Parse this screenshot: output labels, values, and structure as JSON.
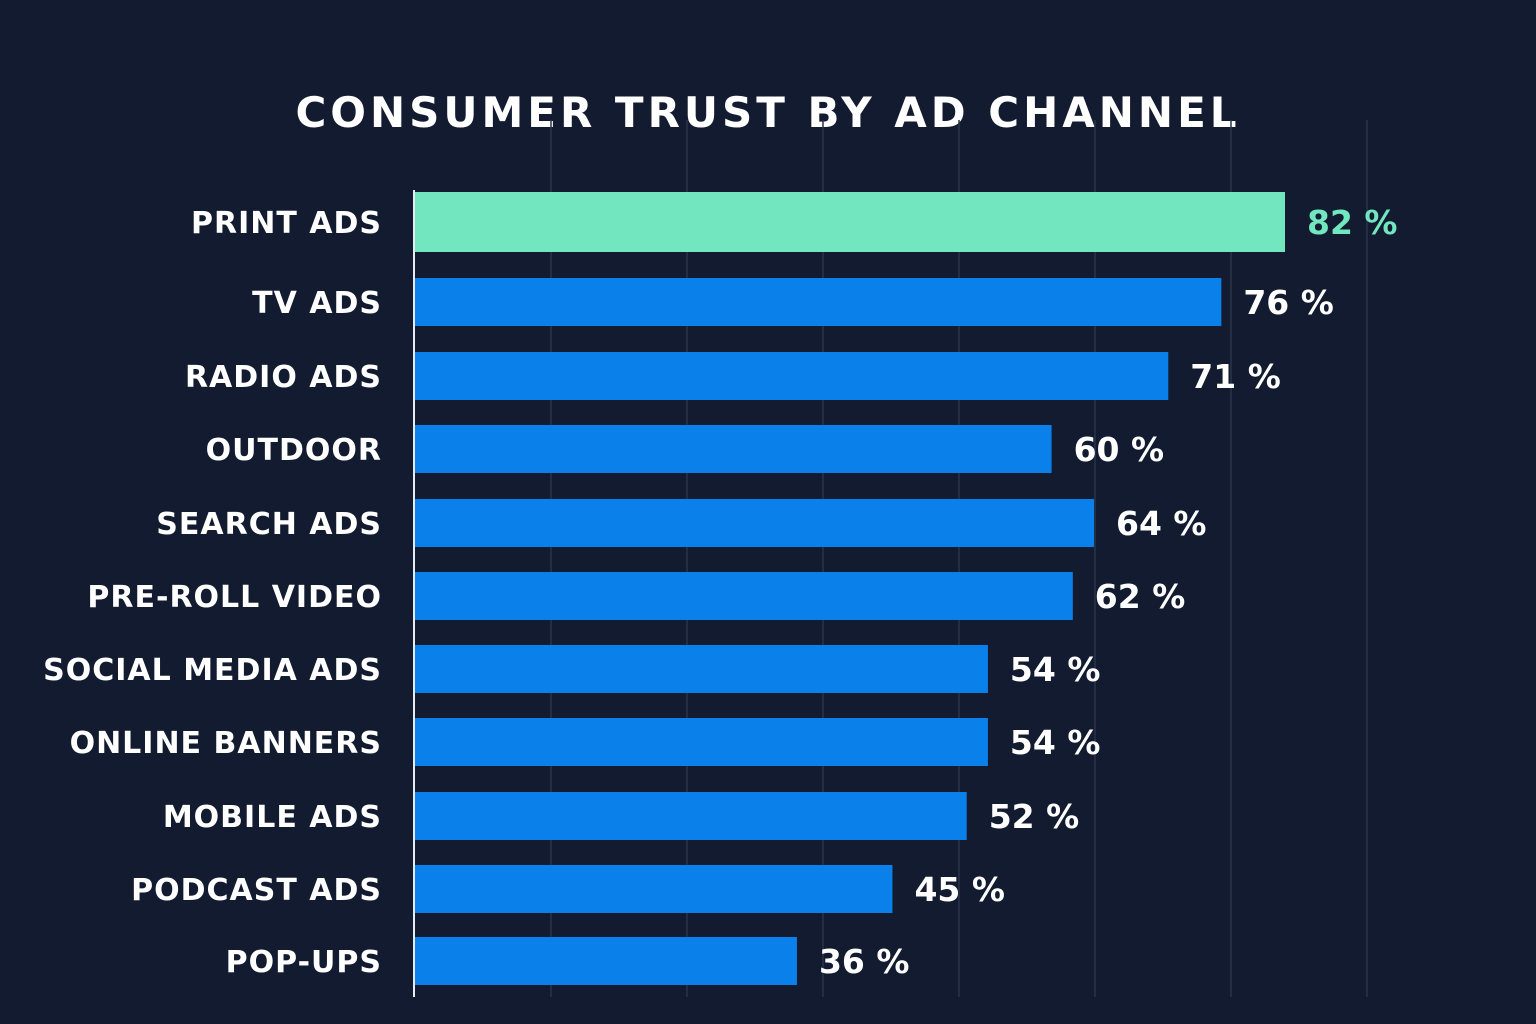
{
  "chart_data": {
    "type": "bar",
    "orientation": "horizontal",
    "title": "CONSUMER TRUST BY AD CHANNEL",
    "categories": [
      "PRINT ADS",
      "TV ADS",
      "RADIO ADS",
      "OUTDOOR",
      "SEARCH ADS",
      "PRE-ROLL VIDEO",
      "SOCIAL MEDIA ADS",
      "ONLINE BANNERS",
      "MOBILE ADS",
      "PODCAST ADS",
      "POP-UPS"
    ],
    "values": [
      82,
      76,
      71,
      60,
      64,
      62,
      54,
      54,
      52,
      45,
      36
    ],
    "value_labels": [
      "82 %",
      "76 %",
      "71 %",
      "60 %",
      "64 %",
      "62 %",
      "54 %",
      "54 %",
      "52 %",
      "45 %",
      "36 %"
    ],
    "highlight_index": 0,
    "xlabel": "",
    "ylabel": "",
    "xlim": [
      0,
      90
    ],
    "grid": true,
    "colors": {
      "background": "#121b30",
      "highlight": "#72e6bf",
      "bar": "#0a80ea",
      "grid": "#2a3448",
      "text": "#ffffff"
    }
  }
}
